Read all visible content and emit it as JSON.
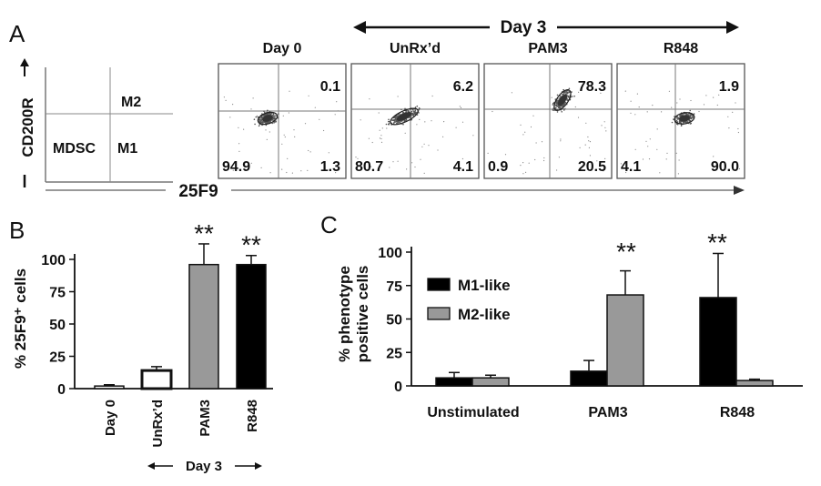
{
  "panel_a": {
    "label": "A",
    "y_axis_label": "CD200R",
    "x_axis_label": "25F9",
    "day3_label": "Day 3",
    "legend_quadrants": {
      "top_right": "M2",
      "bottom_left": "MDSC",
      "bottom_right": "M1"
    }
  },
  "panel_b": {
    "label": "B",
    "group_label": "Day 3"
  },
  "panel_c": {
    "label": "C"
  },
  "chart_data": [
    {
      "type": "scatter",
      "name": "flow-cytometry-quadrants",
      "xlabel": "25F9",
      "ylabel": "CD200R",
      "plots": [
        {
          "title": "Day 0",
          "UR": "0.1",
          "LL": "94.9",
          "LR": "1.3"
        },
        {
          "title": "UnRx’d",
          "UR": "6.2",
          "LL": "80.7",
          "LR": "4.1"
        },
        {
          "title": "PAM3",
          "UR": "78.3",
          "LL": "0.9",
          "LR": "20.5"
        },
        {
          "title": "R848",
          "UR": "1.9",
          "LL": "4.1",
          "LR": "90.0"
        }
      ]
    },
    {
      "type": "bar",
      "ylabel": "% 25F9⁺ cells",
      "ylim": [
        0,
        100
      ],
      "yticks": [
        "0",
        "25",
        "50",
        "75",
        "100"
      ],
      "categories": [
        "Day 0",
        "UnRx’d",
        "PAM3",
        "R848"
      ],
      "values": [
        2,
        14,
        96,
        96
      ],
      "errors": [
        1,
        3,
        16,
        7
      ],
      "significance": [
        "",
        "",
        "**",
        "**"
      ],
      "colors": [
        "#ffffff",
        "#ffffff",
        "#999999",
        "#000000"
      ]
    },
    {
      "type": "bar",
      "ylabel_line1": "% phenotype",
      "ylabel_line2": "positive cells",
      "ylim": [
        0,
        100
      ],
      "yticks": [
        "0",
        "25",
        "50",
        "75",
        "100"
      ],
      "categories": [
        "Unstimulated",
        "PAM3",
        "R848"
      ],
      "series": [
        {
          "name": "M1-like",
          "color": "#000000",
          "values": [
            6,
            11,
            66
          ],
          "errors": [
            4,
            8,
            33
          ]
        },
        {
          "name": "M2-like",
          "color": "#999999",
          "values": [
            6,
            68,
            4
          ],
          "errors": [
            2,
            18,
            1
          ]
        }
      ],
      "significance": [
        "",
        "**",
        "**"
      ]
    }
  ]
}
